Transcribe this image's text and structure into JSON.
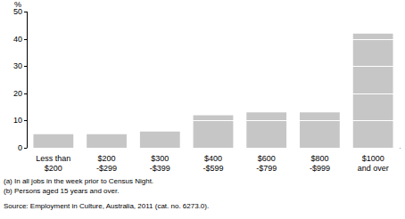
{
  "chart_data": {
    "type": "bar",
    "y_label": "%",
    "categories": [
      "Less than\n$200",
      "$200\n-$299",
      "$300\n-$399",
      "$400\n-$599",
      "$600\n-$799",
      "$800\n-$999",
      "$1000\nand over"
    ],
    "values": [
      5,
      5,
      6,
      12,
      13,
      13,
      42
    ],
    "color": "#c6c6c6",
    "ylim": [
      0,
      50
    ],
    "yticks": [
      0,
      10,
      20,
      30,
      40,
      50
    ],
    "grid": true,
    "footnotes": [
      "(a) In all jobs in the week prior to Census Night.",
      "(b) Persons aged 15 years and over."
    ],
    "source": "Source: Employment in Culture, Australia, 2011 (cat. no. 6273.0)."
  }
}
